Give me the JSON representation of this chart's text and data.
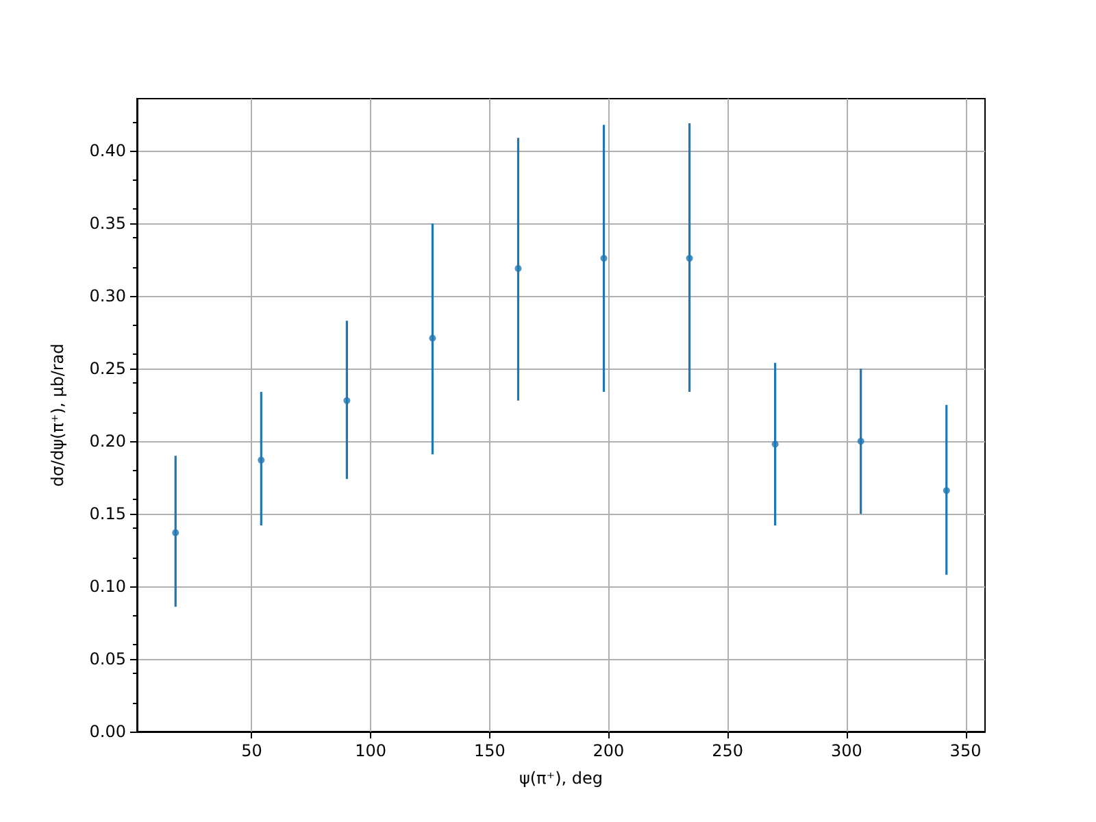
{
  "chart_data": {
    "type": "scatter",
    "xlabel": "ψ(π⁺), deg",
    "ylabel": "dσ/dψ(π⁺), μb/rad",
    "x": [
      18,
      54,
      90,
      126,
      162,
      198,
      234,
      270,
      306,
      342
    ],
    "values": [
      0.137,
      0.187,
      0.228,
      0.271,
      0.319,
      0.326,
      0.326,
      0.198,
      0.2,
      0.166
    ],
    "errors": [
      [
        0.086,
        0.19
      ],
      [
        0.142,
        0.234
      ],
      [
        0.174,
        0.283
      ],
      [
        0.191,
        0.35
      ],
      [
        0.228,
        0.409
      ],
      [
        0.234,
        0.418
      ],
      [
        0.234,
        0.419
      ],
      [
        0.142,
        0.254
      ],
      [
        0.15,
        0.25
      ],
      [
        0.108,
        0.225
      ]
    ],
    "color": "#1f77b4",
    "marker": "circle",
    "xlim": [
      1.8,
      358.2
    ],
    "xticks": [
      50,
      100,
      150,
      200,
      250,
      300,
      350
    ],
    "ylim": [
      0,
      0.436
    ],
    "yticks": [
      {
        "value": 0,
        "label": "0.00"
      },
      0.05,
      {
        "value": 0.1,
        "label": "0.10"
      },
      0.15,
      {
        "value": 0.2,
        "label": "0.20"
      },
      0.25,
      {
        "value": 0.3,
        "label": "0.30"
      },
      0.35,
      {
        "value": 0.4,
        "label": "0.40"
      }
    ],
    "grid": true
  }
}
